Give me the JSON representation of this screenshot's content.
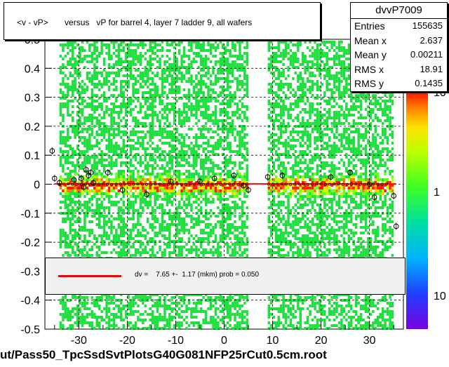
{
  "title": "<v - vP>       versus   vP for barrel 4, layer 7 ladder 9, all wafers",
  "stats": {
    "name": "dvvP7009",
    "rows": [
      {
        "key": "Entries",
        "value": "155635"
      },
      {
        "key": "Mean x",
        "value": "2.637"
      },
      {
        "key": "Mean y",
        "value": "0.00211"
      },
      {
        "key": "RMS x",
        "value": "18.91"
      },
      {
        "key": "RMS y",
        "value": "0.1435"
      }
    ]
  },
  "fit_legend": "dv =    7.65 +-  1.17 (mkm) prob = 0.050",
  "footer": "ut/Pass50_TpcSsdSvtPlotsG40G081NFP25rCut0.5cm.root",
  "colors": {
    "fit_line": "#ff0000",
    "grid": "#000000"
  },
  "chart_data": {
    "type": "heatmap",
    "title": "<v - vP>       versus   vP for barrel 4, layer 7 ladder 9, all wafers",
    "xlabel": "",
    "ylabel": "",
    "xlim": [
      -37,
      37
    ],
    "ylim": [
      -0.5,
      0.5
    ],
    "x_ticks": [
      -30,
      -20,
      -10,
      0,
      10,
      20,
      30
    ],
    "y_ticks": [
      -0.5,
      -0.4,
      -0.3,
      -0.2,
      -0.1,
      0,
      0.1,
      0.2,
      0.3,
      0.4,
      0.5
    ],
    "y_tick_labels": [
      "-0.5",
      "-0.4",
      "-0.3",
      "-0.2",
      "-0.1",
      "0",
      "0.1",
      "0.2",
      "0.3",
      "0.4",
      "0.5"
    ],
    "x_tick_labels": [
      "-30",
      "-20",
      "-10",
      "0",
      "10",
      "20",
      "30"
    ],
    "z_scale": "log",
    "z_ticks": [
      10,
      1,
      10
    ],
    "z_tick_labels": [
      "10",
      "1",
      "10"
    ],
    "grid": true,
    "occupied_x_ranges": [
      [
        -34,
        5
      ],
      [
        9,
        35
      ]
    ],
    "fit": {
      "type": "constant",
      "value_mkm": 7.65,
      "error_mkm": 1.17,
      "prob": 0.05
    },
    "profile_points": [
      {
        "x": -35.5,
        "y": 0.115
      },
      {
        "x": -35,
        "y": 0.02
      },
      {
        "x": -34,
        "y": 0.005
      },
      {
        "x": -31,
        "y": 0.015
      },
      {
        "x": -29.5,
        "y": 0.02
      },
      {
        "x": -29,
        "y": -0.01
      },
      {
        "x": -28.5,
        "y": 0.05
      },
      {
        "x": -28,
        "y": 0.03
      },
      {
        "x": -27.5,
        "y": 0.04
      },
      {
        "x": -27,
        "y": 0.005
      },
      {
        "x": -24,
        "y": 0.04
      },
      {
        "x": -21,
        "y": -0.02
      },
      {
        "x": -16,
        "y": -0.035
      },
      {
        "x": -11,
        "y": 0.01
      },
      {
        "x": -5,
        "y": 0.01
      },
      {
        "x": -2,
        "y": 0.02
      },
      {
        "x": 2,
        "y": 0.03
      },
      {
        "x": 4,
        "y": -0.005
      },
      {
        "x": 5,
        "y": -0.02
      },
      {
        "x": 9,
        "y": 0.025
      },
      {
        "x": 12,
        "y": 0.03
      },
      {
        "x": 22,
        "y": 0.025
      },
      {
        "x": 26,
        "y": 0.04
      },
      {
        "x": 30,
        "y": 0.0
      },
      {
        "x": 31,
        "y": -0.045
      },
      {
        "x": 35,
        "y": -0.04
      },
      {
        "x": 35.5,
        "y": -0.145
      }
    ]
  }
}
